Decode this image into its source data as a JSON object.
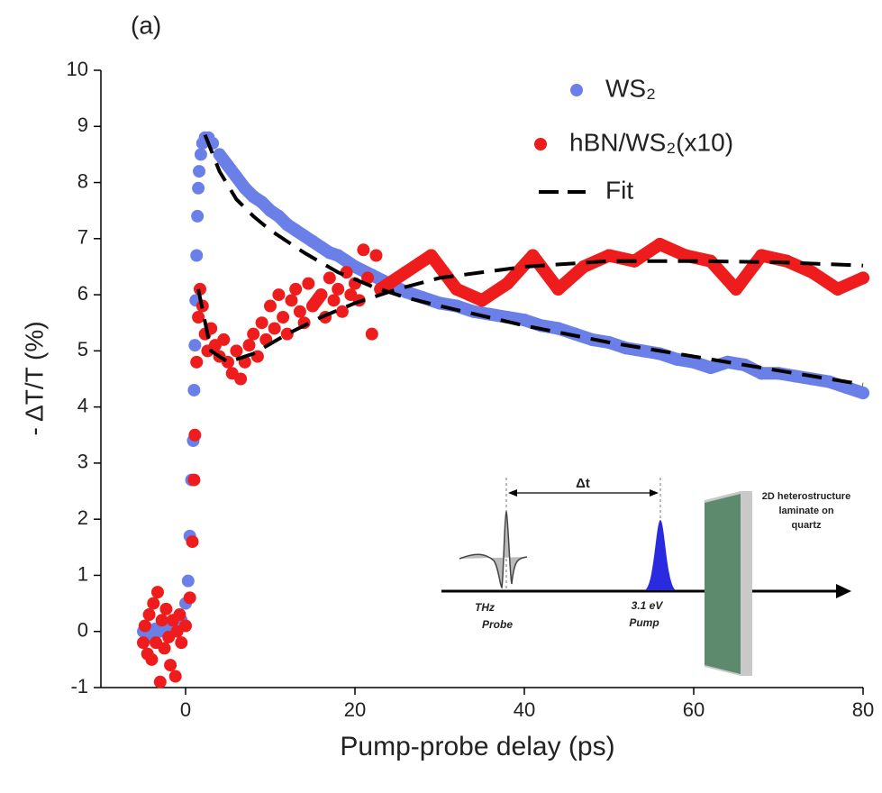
{
  "chart_data": {
    "type": "scatter",
    "title": "(a)",
    "x_label": "Pump-probe delay (ps)",
    "y_label": "- ΔT/T (%)",
    "xlim": [
      -10,
      80
    ],
    "xticks": [
      0,
      20,
      40,
      60,
      80
    ],
    "ylim": [
      -1,
      10
    ],
    "yticks": [
      -1,
      0,
      1,
      2,
      3,
      4,
      5,
      6,
      7,
      8,
      9,
      10
    ],
    "series": [
      {
        "name": "WS₂",
        "color": "#6b7fe8",
        "style": "scatter",
        "x": [
          -5,
          -4.5,
          -4,
          -3.5,
          -3,
          -2.5,
          -2,
          -1.5,
          -1,
          -0.5,
          0,
          0.3,
          0.5,
          0.7,
          0.9,
          1,
          1.1,
          1.2,
          1.3,
          1.4,
          1.5,
          1.6,
          1.8,
          2,
          2.3,
          2.7,
          3.2,
          4,
          5,
          6,
          7,
          8,
          9,
          10,
          11,
          12,
          13,
          14,
          15,
          16,
          17,
          18,
          19,
          20,
          22,
          24,
          26,
          28,
          30,
          32,
          34,
          36,
          38,
          40,
          42,
          44,
          46,
          48,
          50,
          52,
          54,
          56,
          58,
          60,
          62,
          64,
          66,
          68,
          70,
          72,
          74,
          76,
          78,
          80
        ],
        "values": [
          0,
          0.05,
          -0.1,
          0.05,
          0,
          0.1,
          0,
          0.05,
          0.1,
          0.2,
          0.5,
          0.9,
          1.7,
          2.7,
          3.4,
          4.3,
          5.1,
          5.9,
          6.7,
          7.4,
          7.9,
          8.2,
          8.5,
          8.7,
          8.8,
          8.8,
          8.7,
          8.5,
          8.3,
          8.1,
          7.9,
          7.75,
          7.65,
          7.5,
          7.4,
          7.25,
          7.15,
          7.05,
          6.95,
          6.85,
          6.75,
          6.7,
          6.6,
          6.5,
          6.35,
          6.2,
          6.05,
          5.95,
          5.85,
          5.8,
          5.7,
          5.65,
          5.6,
          5.55,
          5.45,
          5.4,
          5.3,
          5.2,
          5.15,
          5.05,
          5.0,
          4.95,
          4.85,
          4.8,
          4.7,
          4.8,
          4.75,
          4.6,
          4.6,
          4.55,
          4.5,
          4.45,
          4.35,
          4.25
        ]
      },
      {
        "name": "hBN/WS₂(x10)",
        "color": "#ee1c1c",
        "style": "scatter",
        "x": [
          -5,
          -4.8,
          -4.5,
          -4.3,
          -4,
          -3.8,
          -3.5,
          -3.3,
          -3,
          -2.8,
          -2.5,
          -2.3,
          -2,
          -1.8,
          -1.5,
          -1.2,
          -1,
          -0.7,
          -0.5,
          0,
          0.5,
          0.8,
          1,
          1.1,
          1.3,
          1.5,
          1.7,
          2,
          2.3,
          2.6,
          3,
          3.5,
          4,
          4.5,
          5,
          5.5,
          6,
          6.5,
          7,
          7.5,
          8,
          8.5,
          9,
          9.5,
          10,
          10.5,
          11,
          11.5,
          12,
          12.5,
          13,
          13.5,
          14,
          14.5,
          15,
          16,
          16.5,
          17,
          17.5,
          18,
          18.5,
          19,
          19.5,
          20,
          20.5,
          21,
          21.5,
          22,
          22.5,
          23,
          24,
          26,
          29,
          32,
          35,
          38,
          41,
          44,
          47,
          50,
          53,
          56,
          59,
          62,
          65,
          68,
          71,
          74,
          77,
          80
        ],
        "values": [
          -0.2,
          0.1,
          -0.4,
          0.3,
          -0.5,
          0.5,
          -0.2,
          0.7,
          -0.9,
          0.2,
          -0.3,
          0.4,
          -0.1,
          -0.6,
          0.2,
          -0.8,
          0,
          0.3,
          -0.2,
          0.1,
          0.6,
          1.6,
          2.7,
          3.5,
          4.8,
          5.6,
          6.1,
          5.8,
          5.3,
          5.0,
          5.4,
          5.1,
          4.9,
          5.2,
          4.8,
          4.6,
          5.0,
          4.5,
          4.8,
          5.1,
          5.3,
          4.9,
          5.5,
          5.2,
          5.8,
          5.4,
          6.0,
          5.6,
          5.3,
          5.9,
          6.1,
          5.7,
          5.5,
          6.2,
          5.8,
          6.0,
          5.6,
          6.3,
          5.9,
          6.1,
          5.7,
          6.4,
          6.0,
          6.2,
          5.9,
          6.8,
          6.3,
          5.3,
          6.7,
          6.1,
          6.2,
          6.4,
          6.7,
          6.1,
          5.9,
          6.2,
          6.7,
          6.1,
          6.5,
          6.7,
          6.6,
          6.9,
          6.7,
          6.6,
          6.1,
          6.7,
          6.6,
          6.4,
          6.1,
          6.3
        ]
      },
      {
        "name": "Fit",
        "color": "#000000",
        "style": "dashed",
        "x": [
          2.3,
          4,
          6,
          8,
          10,
          14,
          18,
          22,
          26,
          30,
          40,
          50,
          60,
          70,
          80,
          null,
          1.5,
          3,
          5,
          8,
          12,
          16,
          20,
          25,
          30,
          40,
          50,
          60,
          70,
          80
        ],
        "values": [
          8.85,
          8.2,
          7.7,
          7.4,
          7.15,
          6.75,
          6.4,
          6.15,
          5.95,
          5.8,
          5.45,
          5.15,
          4.9,
          4.65,
          4.4,
          null,
          6.1,
          5.0,
          4.8,
          4.95,
          5.3,
          5.6,
          5.85,
          6.1,
          6.3,
          6.5,
          6.6,
          6.6,
          6.58,
          6.52
        ]
      }
    ],
    "inset": {
      "delay": "Δt",
      "probe": [
        "THz",
        "Probe"
      ],
      "pump": [
        "3.1 eV",
        "Pump"
      ],
      "sample": [
        "2D heterostructure",
        "laminate on",
        "quartz"
      ]
    }
  }
}
